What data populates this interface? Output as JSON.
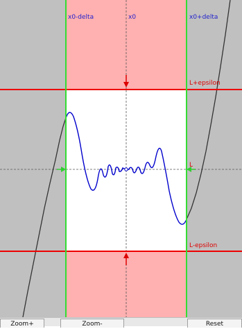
{
  "labels": {
    "x0_minus_delta": "x0-delta",
    "x0": "x0",
    "x0_plus_delta": "x0+delta",
    "l_plus_epsilon": "L+epsilon",
    "l": "L",
    "l_minus_epsilon": "L-epsilon"
  },
  "buttons": {
    "zoom_in": "Zoom+",
    "zoom_out": "Zoom-",
    "reset": "Reset"
  },
  "colors": {
    "background_gray": "#c0c0c0",
    "delta_band": "#ffb0b0",
    "window": "#ffffff",
    "epsilon_lines": "#ee0000",
    "delta_lines": "#33dd33",
    "curve_inside": "#0000cc",
    "curve_outside": "#333333",
    "label_blue": "#2222cc",
    "label_red": "#dd0000"
  }
}
